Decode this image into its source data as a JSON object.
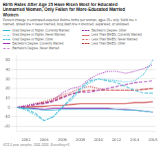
{
  "chart_data": {
    "type": "line",
    "title": "Birth Rates After Age 25 Have Risen Most for Educated\nUnmarried Women, Only Fallen for More-Educated Married\nWomen",
    "subtitle": "Percent change in estimated expected lifetime births per woman, ages 25+ only. Solid line =\nmarried, dotted line = never married, long dash line = divorced, separated, or widowed.",
    "footnote": "ACS 1-year samples, 2001-2016. Smoothing=3.",
    "x": [
      2001,
      2002,
      2003,
      2004,
      2005,
      2006,
      2007,
      2008,
      2009,
      2010,
      2011,
      2012,
      2013,
      2014,
      2015,
      2016
    ],
    "series": [
      {
        "name": "Grad Degree or Higher, Currently Married",
        "color": "#29b6d4",
        "line_style": "solid",
        "values": [
          0,
          -1,
          -2,
          -3,
          -3,
          -2,
          -2,
          -2,
          -2,
          -2,
          -2,
          -2,
          -3,
          -3,
          -4,
          -5
        ]
      },
      {
        "name": "Grad Degree or Higher, Never Married",
        "color": "#29b6d4",
        "line_style": "dotted",
        "values": [
          0,
          -3,
          -8,
          -14,
          -10,
          0,
          8,
          18,
          26,
          30,
          29,
          28,
          27,
          28,
          35,
          50
        ]
      },
      {
        "name": "Grad Degree or Higher, Other",
        "color": "#29b6d4",
        "line_style": "dashed",
        "values": [
          0,
          -2,
          -6,
          -14,
          -10,
          0,
          10,
          20,
          28,
          30,
          28,
          26,
          22,
          18,
          15,
          15
        ]
      },
      {
        "name": "Bachelor's Degree, Currently Married",
        "color": "#9c27b0",
        "line_style": "solid",
        "values": [
          0,
          -1,
          -1,
          -2,
          -1,
          -1,
          -1,
          -1,
          -1,
          -1,
          -1,
          -2,
          -2,
          -3,
          -4,
          -5
        ]
      },
      {
        "name": "Bachelor's Degree, Never Married",
        "color": "#9c27b0",
        "line_style": "dotted",
        "values": [
          0,
          2,
          4,
          4,
          8,
          15,
          20,
          22,
          30,
          35,
          38,
          38,
          36,
          38,
          41,
          45
        ]
      },
      {
        "name": "Bachelor's Degree, Other",
        "color": "#9c27b0",
        "line_style": "dashed",
        "values": [
          0,
          1,
          3,
          4,
          6,
          10,
          14,
          16,
          16,
          18,
          20,
          22,
          24,
          26,
          27,
          28
        ]
      },
      {
        "name": "Less Than BA/BS, Currently Married",
        "color": "#c62828",
        "line_style": "solid",
        "values": [
          0,
          0,
          1,
          1,
          2,
          2,
          3,
          4,
          4,
          4,
          4,
          4,
          4,
          5,
          5,
          6
        ]
      },
      {
        "name": "Less Than BA/BS, Never Married",
        "color": "#c62828",
        "line_style": "dotted",
        "values": [
          0,
          2,
          4,
          6,
          9,
          13,
          16,
          20,
          22,
          20,
          18,
          18,
          18,
          18,
          19,
          20
        ]
      },
      {
        "name": "Less Than BA/BS, Other",
        "color": "#c62828",
        "line_style": "dashed",
        "values": [
          0,
          1,
          3,
          5,
          7,
          11,
          14,
          17,
          18,
          18,
          18,
          18,
          18,
          18,
          19,
          20
        ]
      }
    ],
    "xlim": [
      2001,
      2016.3
    ],
    "xticks": [
      2002,
      2004,
      2006,
      2008,
      2010,
      2012,
      2014,
      2016
    ],
    "ylim": [
      -25,
      55
    ],
    "yticks": [
      -20,
      -10,
      0,
      10,
      20,
      30,
      40,
      50
    ],
    "grid": "y",
    "legend": "top"
  }
}
